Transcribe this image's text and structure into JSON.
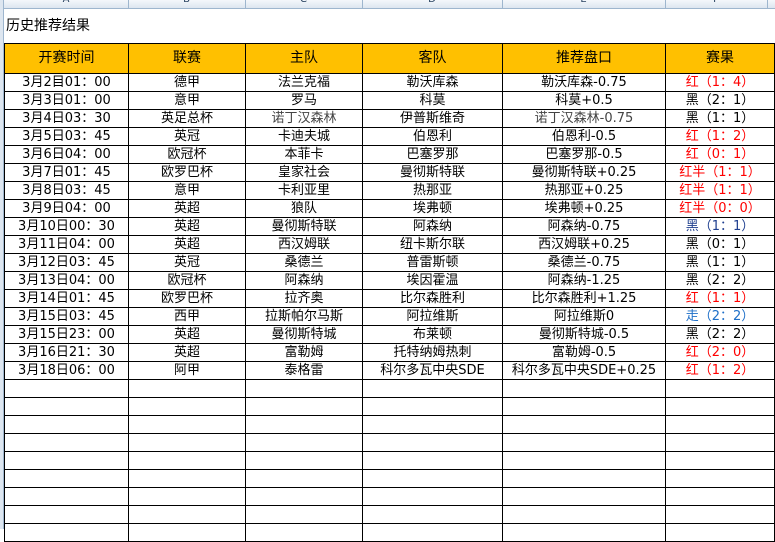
{
  "columns": [
    "A",
    "B",
    "C",
    "D",
    "E",
    "F"
  ],
  "title": "历史推荐结果",
  "headers": [
    "开赛时间",
    "联赛",
    "主队",
    "客队",
    "推荐盘口",
    "赛果"
  ],
  "colors": {
    "header_bg": "#ffc000",
    "red": "#ff0000",
    "black": "#000000",
    "navy": "#1f3f8f",
    "blue": "#1e6fc8"
  },
  "rows": [
    {
      "time": "3月2目01：00",
      "league": "德甲",
      "home": "法兰克福",
      "away": "勒沃库森",
      "pick": "勒沃库森-0.75",
      "result": "红（1：4）",
      "result_color": "red"
    },
    {
      "time": "3月3日01：00",
      "league": "意甲",
      "home": "罗马",
      "away": "科莫",
      "pick": "科莫+0.5",
      "result": "黑（2：1）",
      "result_color": "black"
    },
    {
      "time": "3月4日03：30",
      "league": "英足总杯",
      "home": "诺丁汉森林",
      "away": "伊普斯维奇",
      "pick": "诺丁汉森林-0.75",
      "result": "黑（1：1）",
      "result_color": "black"
    },
    {
      "time": "3月5日03：45",
      "league": "英冠",
      "home": "卡迪夫城",
      "away": "伯恩利",
      "pick": "伯恩利-0.5",
      "result": "红（1：2）",
      "result_color": "red"
    },
    {
      "time": "3月6日04：00",
      "league": "欧冠杯",
      "home": "本菲卡",
      "away": "巴塞罗那",
      "pick": "巴塞罗那-0.5",
      "result": "红（0：1）",
      "result_color": "red"
    },
    {
      "time": "3月7日01：45",
      "league": "欧罗巴杯",
      "home": "皇家社会",
      "away": "曼彻斯特联",
      "pick": "曼彻斯特联+0.25",
      "result": "红半（1：1）",
      "result_color": "red"
    },
    {
      "time": "3月8日03：45",
      "league": "意甲",
      "home": "卡利亚里",
      "away": "热那亚",
      "pick": "热那亚+0.25",
      "result": "红半（1：1）",
      "result_color": "red"
    },
    {
      "time": "3月9日04：00",
      "league": "英超",
      "home": "狼队",
      "away": "埃弗顿",
      "pick": "埃弗顿+0.25",
      "result": "红半（0：0）",
      "result_color": "red"
    },
    {
      "time": "3月10日00：30",
      "league": "英超",
      "home": "曼彻斯特联",
      "away": "阿森纳",
      "pick": "阿森纳-0.75",
      "result": "黑（1：1）",
      "result_color": "navy"
    },
    {
      "time": "3月11日04：00",
      "league": "英超",
      "home": "西汉姆联",
      "away": "纽卡斯尔联",
      "pick": "西汉姆联+0.25",
      "result": "黑（0：1）",
      "result_color": "black"
    },
    {
      "time": "3月12日03：45",
      "league": "英冠",
      "home": "桑德兰",
      "away": "普雷斯顿",
      "pick": "桑德兰-0.75",
      "result": "黑（1：1）",
      "result_color": "black"
    },
    {
      "time": "3月13日04：00",
      "league": "欧冠杯",
      "home": "阿森纳",
      "away": "埃因霍温",
      "pick": "阿森纳-1.25",
      "result": "黑（2：2）",
      "result_color": "black"
    },
    {
      "time": "3月14日01：45",
      "league": "欧罗巴杯",
      "home": "拉齐奥",
      "away": "比尔森胜利",
      "pick": "比尔森胜利+1.25",
      "result": "红（1：1）",
      "result_color": "red"
    },
    {
      "time": "3月15日03：45",
      "league": "西甲",
      "home": "拉斯帕尔马斯",
      "away": "阿拉维斯",
      "pick": "阿拉维斯0",
      "result": "走（2：2）",
      "result_color": "blue"
    },
    {
      "time": "3月15日23：00",
      "league": "英超",
      "home": "曼彻斯特城",
      "away": "布莱顿",
      "pick": "曼彻斯特城-0.5",
      "result": "黑（2：2）",
      "result_color": "black"
    },
    {
      "time": "3月16日21：30",
      "league": "英超",
      "home": "富勒姆",
      "away": "托特纳姆热刺",
      "pick": "富勒姆-0.5",
      "result": "红（2：0）",
      "result_color": "red"
    },
    {
      "time": "3月18日06：00",
      "league": "阿甲",
      "home": "泰格雷",
      "away": "科尔多瓦中央SDE",
      "pick": "科尔多瓦中央SDE+0.25",
      "result": "红（1：2）",
      "result_color": "red"
    }
  ]
}
